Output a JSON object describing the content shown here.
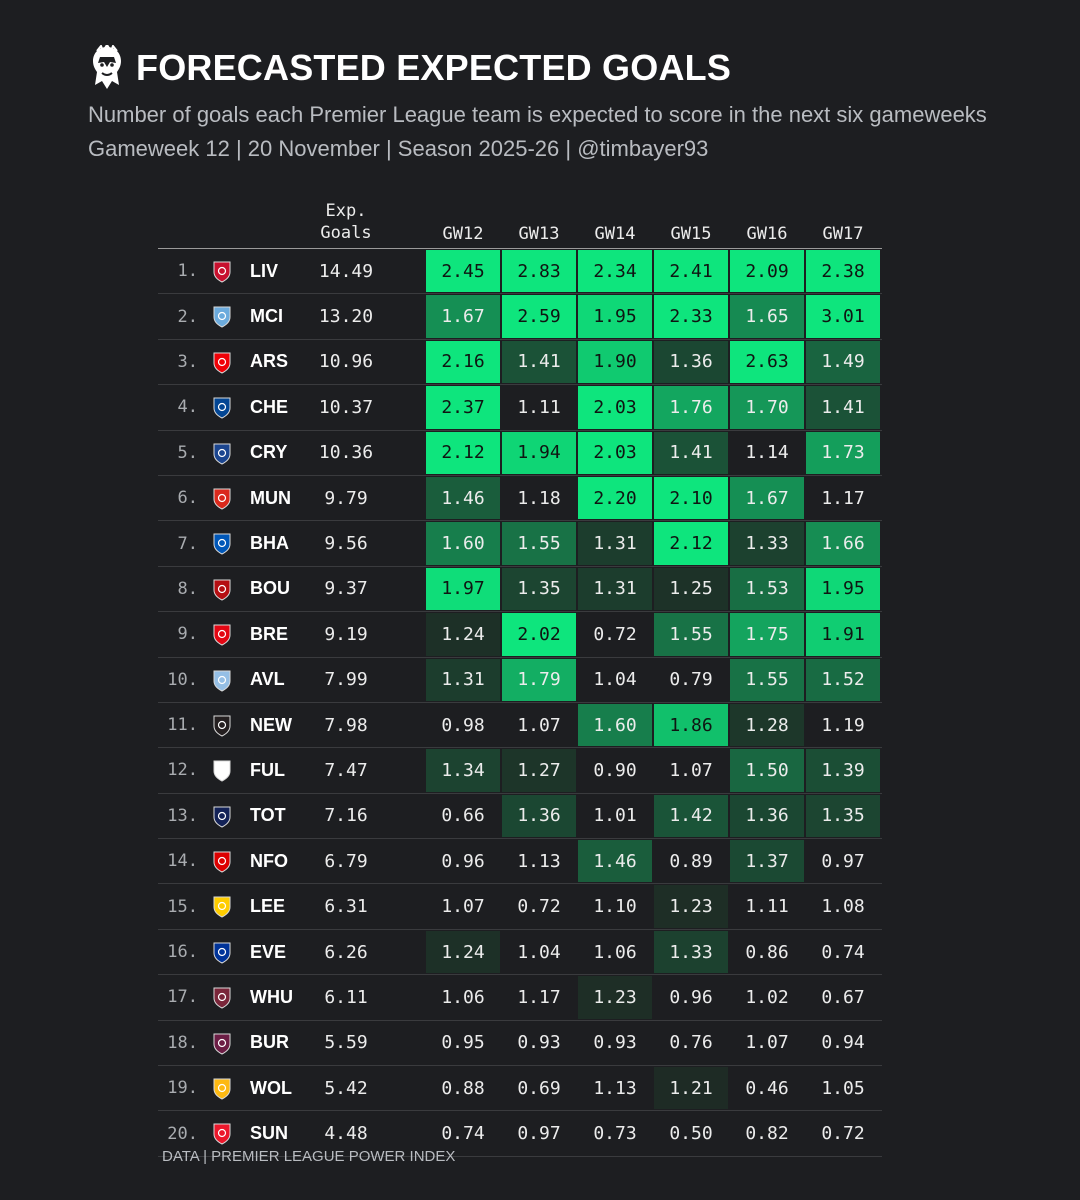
{
  "title": "FORECASTED EXPECTED GOALS",
  "subtitle_line1": "Number of goals each Premier League team is expected to score in the next six gameweeks",
  "subtitle_line2": "Gameweek 12 | 20 November | Season 2025-26 | @timbayer93",
  "footer": "DATA | PREMIER LEAGUE POWER INDEX",
  "logo_icon": "premier-league-lion-icon",
  "colors": {
    "background": "#1d1e21",
    "text": "#ececec",
    "green_high": "#0ee57d",
    "green_low": "#1e2a24"
  },
  "chart_data": {
    "type": "table",
    "title": "FORECASTED EXPECTED GOALS",
    "columns": {
      "total_line1": "Exp.",
      "total_line2": "Goals",
      "gameweeks": [
        "GW12",
        "GW13",
        "GW14",
        "GW15",
        "GW16",
        "GW17"
      ]
    },
    "rows": [
      {
        "rank": "1.",
        "team": "LIV",
        "total": "14.49",
        "crest": "liverpool-crest-icon",
        "values": [
          2.45,
          2.83,
          2.34,
          2.41,
          2.09,
          2.38
        ]
      },
      {
        "rank": "2.",
        "team": "MCI",
        "total": "13.20",
        "crest": "man-city-crest-icon",
        "values": [
          1.67,
          2.59,
          1.95,
          2.33,
          1.65,
          3.01
        ]
      },
      {
        "rank": "3.",
        "team": "ARS",
        "total": "10.96",
        "crest": "arsenal-crest-icon",
        "values": [
          2.16,
          1.41,
          1.9,
          1.36,
          2.63,
          1.49
        ]
      },
      {
        "rank": "4.",
        "team": "CHE",
        "total": "10.37",
        "crest": "chelsea-crest-icon",
        "values": [
          2.37,
          1.11,
          2.03,
          1.76,
          1.7,
          1.41
        ]
      },
      {
        "rank": "5.",
        "team": "CRY",
        "total": "10.36",
        "crest": "crystal-palace-crest-icon",
        "values": [
          2.12,
          1.94,
          2.03,
          1.41,
          1.14,
          1.73
        ]
      },
      {
        "rank": "6.",
        "team": "MUN",
        "total": "9.79",
        "crest": "man-united-crest-icon",
        "values": [
          1.46,
          1.18,
          2.2,
          2.1,
          1.67,
          1.17
        ]
      },
      {
        "rank": "7.",
        "team": "BHA",
        "total": "9.56",
        "crest": "brighton-crest-icon",
        "values": [
          1.6,
          1.55,
          1.31,
          2.12,
          1.33,
          1.66
        ]
      },
      {
        "rank": "8.",
        "team": "BOU",
        "total": "9.37",
        "crest": "bournemouth-crest-icon",
        "values": [
          1.97,
          1.35,
          1.31,
          1.25,
          1.53,
          1.95
        ]
      },
      {
        "rank": "9.",
        "team": "BRE",
        "total": "9.19",
        "crest": "brentford-crest-icon",
        "values": [
          1.24,
          2.02,
          0.72,
          1.55,
          1.75,
          1.91
        ]
      },
      {
        "rank": "10.",
        "team": "AVL",
        "total": "7.99",
        "crest": "aston-villa-crest-icon",
        "values": [
          1.31,
          1.79,
          1.04,
          0.79,
          1.55,
          1.52
        ]
      },
      {
        "rank": "11.",
        "team": "NEW",
        "total": "7.98",
        "crest": "newcastle-crest-icon",
        "values": [
          0.98,
          1.07,
          1.6,
          1.86,
          1.28,
          1.19
        ]
      },
      {
        "rank": "12.",
        "team": "FUL",
        "total": "7.47",
        "crest": "fulham-crest-icon",
        "values": [
          1.34,
          1.27,
          0.9,
          1.07,
          1.5,
          1.39
        ]
      },
      {
        "rank": "13.",
        "team": "TOT",
        "total": "7.16",
        "crest": "tottenham-crest-icon",
        "values": [
          0.66,
          1.36,
          1.01,
          1.42,
          1.36,
          1.35
        ]
      },
      {
        "rank": "14.",
        "team": "NFO",
        "total": "6.79",
        "crest": "nottingham-forest-crest-icon",
        "values": [
          0.96,
          1.13,
          1.46,
          0.89,
          1.37,
          0.97
        ]
      },
      {
        "rank": "15.",
        "team": "LEE",
        "total": "6.31",
        "crest": "leeds-crest-icon",
        "values": [
          1.07,
          0.72,
          1.1,
          1.23,
          1.11,
          1.08
        ]
      },
      {
        "rank": "16.",
        "team": "EVE",
        "total": "6.26",
        "crest": "everton-crest-icon",
        "values": [
          1.24,
          1.04,
          1.06,
          1.33,
          0.86,
          0.74
        ]
      },
      {
        "rank": "17.",
        "team": "WHU",
        "total": "6.11",
        "crest": "west-ham-crest-icon",
        "values": [
          1.06,
          1.17,
          1.23,
          0.96,
          1.02,
          0.67
        ]
      },
      {
        "rank": "18.",
        "team": "BUR",
        "total": "5.59",
        "crest": "burnley-crest-icon",
        "values": [
          0.95,
          0.93,
          0.93,
          0.76,
          1.07,
          0.94
        ]
      },
      {
        "rank": "19.",
        "team": "WOL",
        "total": "5.42",
        "crest": "wolves-crest-icon",
        "values": [
          0.88,
          0.69,
          1.13,
          1.21,
          0.46,
          1.05
        ]
      },
      {
        "rank": "20.",
        "team": "SUN",
        "total": "4.48",
        "crest": "sunderland-crest-icon",
        "values": [
          0.74,
          0.97,
          0.73,
          0.5,
          0.82,
          0.72
        ]
      }
    ],
    "crest_colors": {
      "LIV": "#c8102e",
      "MCI": "#6cabdd",
      "ARS": "#ef0107",
      "CHE": "#034694",
      "CRY": "#1b458f",
      "MUN": "#da291c",
      "BHA": "#0057b8",
      "BOU": "#b50e12",
      "BRE": "#e30613",
      "AVL": "#95bfe5",
      "NEW": "#241f20",
      "FUL": "#ffffff",
      "TOT": "#132257",
      "NFO": "#dd0000",
      "LEE": "#ffcd00",
      "EVE": "#003399",
      "WHU": "#7a263a",
      "BUR": "#6c1d45",
      "WOL": "#fdb913",
      "SUN": "#eb172b"
    }
  }
}
